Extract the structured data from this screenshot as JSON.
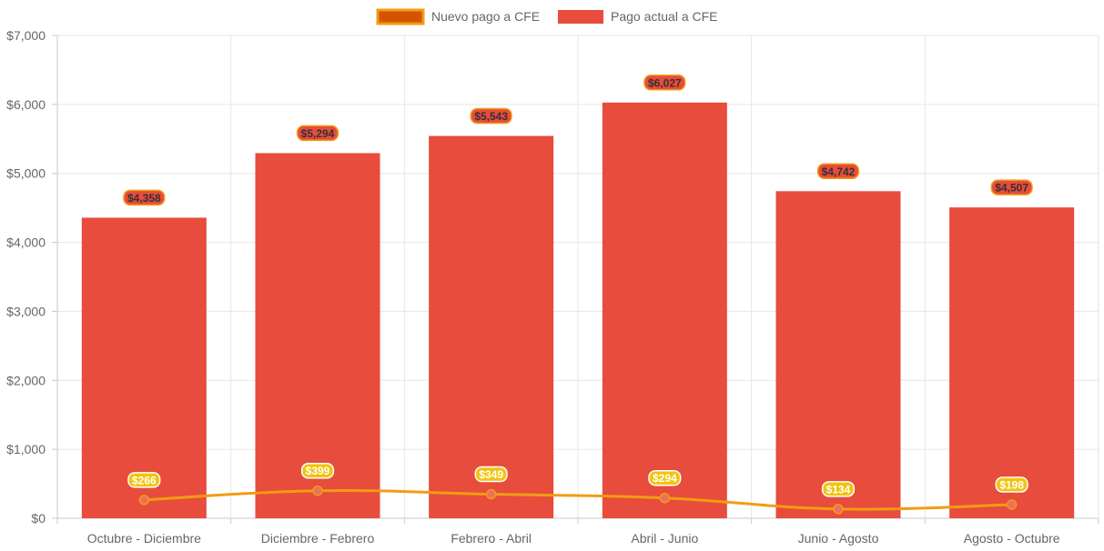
{
  "chart_data": {
    "type": "bar",
    "categories": [
      "Octubre - Diciembre",
      "Diciembre - Febrero",
      "Febrero - Abril",
      "Abril - Junio",
      "Junio - Agosto",
      "Agosto - Octubre"
    ],
    "series": [
      {
        "name": "Pago actual a CFE",
        "type": "bar",
        "color": "#e74c3c",
        "values": [
          4358,
          5294,
          5543,
          6027,
          4742,
          4507
        ],
        "labels": [
          "$4,358",
          "$5,294",
          "$5,543",
          "$6,027",
          "$4,742",
          "$4,507"
        ],
        "label_bg": "#e74c3c",
        "label_border": "#f39c12"
      },
      {
        "name": "Nuevo pago a CFE",
        "type": "line",
        "color": "#f39c12",
        "point_color": "#ec7063",
        "legend_fill": "#d35400",
        "values": [
          266,
          399,
          349,
          294,
          134,
          198
        ],
        "labels": [
          "$266",
          "$399",
          "$349",
          "$294",
          "$134",
          "$198"
        ],
        "label_bg": "#f1c40f"
      }
    ],
    "legend": [
      "Nuevo pago a CFE",
      "Pago actual a CFE"
    ],
    "legend_position": "top-center",
    "ylim": [
      0,
      7000
    ],
    "yticks": [
      0,
      1000,
      2000,
      3000,
      4000,
      5000,
      6000,
      7000
    ],
    "ytick_labels": [
      "$0",
      "$1,000",
      "$2,000",
      "$3,000",
      "$4,000",
      "$5,000",
      "$6,000",
      "$7,000"
    ],
    "grid": true,
    "title": "",
    "xlabel": "",
    "ylabel": ""
  }
}
